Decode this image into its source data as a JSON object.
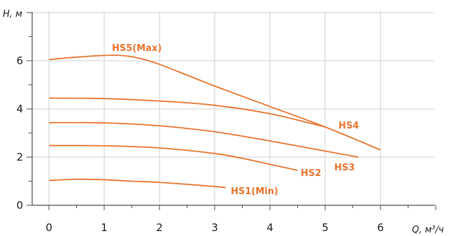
{
  "chart_data": {
    "type": "line",
    "xlabel": "Q, м³/ч",
    "ylabel": "H, м",
    "xlim": [
      0,
      7
    ],
    "ylim": [
      0,
      8
    ],
    "grid": true,
    "x_ticks": [
      "0",
      "1",
      "2",
      "3",
      "4",
      "5",
      "6"
    ],
    "y_ticks": [
      "0",
      "2",
      "4",
      "6"
    ],
    "line_color": "#e8732d",
    "series": [
      {
        "name": "HS5(Max)",
        "x": [
          0,
          0.5,
          1.0,
          1.3,
          1.6,
          2.0,
          3.0,
          4.0,
          5.0,
          6.0
        ],
        "y": [
          6.05,
          6.15,
          6.22,
          6.22,
          6.12,
          5.85,
          4.95,
          4.1,
          3.25,
          2.3
        ]
      },
      {
        "name": "HS4",
        "x": [
          0,
          1,
          2,
          3,
          4,
          5
        ],
        "y": [
          4.45,
          4.43,
          4.33,
          4.15,
          3.8,
          3.25
        ]
      },
      {
        "name": "HS3",
        "x": [
          0,
          1,
          2,
          3,
          4,
          5,
          5.6
        ],
        "y": [
          3.43,
          3.42,
          3.3,
          3.05,
          2.67,
          2.25,
          2.0
        ]
      },
      {
        "name": "HS2",
        "x": [
          0,
          1,
          2,
          3,
          3.5,
          4,
          4.5
        ],
        "y": [
          2.48,
          2.47,
          2.38,
          2.15,
          1.95,
          1.7,
          1.45
        ]
      },
      {
        "name": "HS1(Min)",
        "x": [
          0,
          0.5,
          1,
          1.5,
          2,
          2.5,
          3,
          3.2
        ],
        "y": [
          1.03,
          1.08,
          1.06,
          1.0,
          0.95,
          0.87,
          0.78,
          0.73
        ]
      }
    ]
  }
}
